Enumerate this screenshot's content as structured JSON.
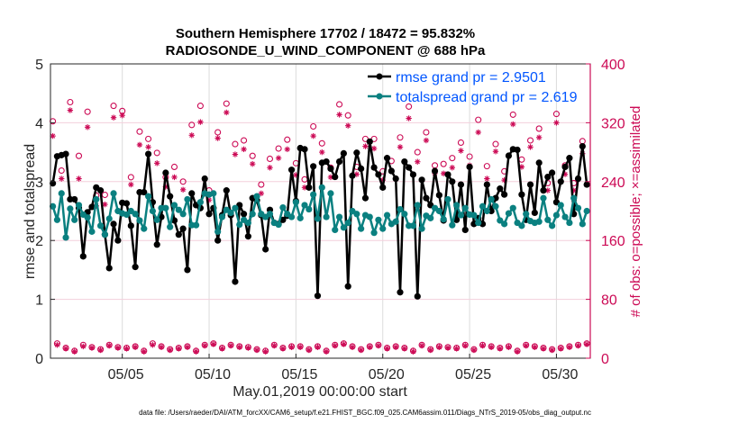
{
  "chart_data": {
    "type": "line",
    "title": [
      "Southern Hemisphere 17702 / 18472 = 95.832%",
      "RADIOSONDE_U_WIND_COMPONENT @ 688 hPa"
    ],
    "xlabel": "May.01,2019 00:00:00 start",
    "ylabel": "rmse and totalspread",
    "y2label": "# of obs: o=possible; ×=assimilated",
    "footer": "data file: /Users/raeder/DAI/ATM_forcXX/CAM6_setup/f.e21.FHIST_BGC.f09_025.CAM6assim.011/Diags_NTrS_2019-05/obs_diag_output.nc",
    "xlim": [
      0,
      31
    ],
    "ylim": [
      0,
      5
    ],
    "y2lim": [
      0,
      400
    ],
    "xticks": [
      4,
      9,
      14,
      19,
      24,
      29
    ],
    "xticklabels": [
      "05/05",
      "05/10",
      "05/15",
      "05/20",
      "05/25",
      "05/30"
    ],
    "yticks": [
      0,
      1,
      2,
      3,
      4,
      5
    ],
    "y2ticks": [
      0,
      80,
      160,
      240,
      320,
      400
    ],
    "grid": true,
    "legend_position": "top-right",
    "time_step_days": 0.25,
    "series": [
      {
        "name": "rmse grand pr = 2.9501",
        "color": "#000000",
        "values": [
          2.97,
          3.43,
          3.45,
          3.47,
          2.7,
          2.7,
          2.55,
          1.73,
          2.48,
          2.57,
          2.9,
          2.85,
          2.1,
          1.53,
          2.28,
          2.0,
          2.64,
          2.63,
          2.25,
          1.55,
          2.82,
          2.82,
          3.47,
          2.65,
          1.93,
          2.4,
          3.15,
          2.75,
          2.34,
          2.1,
          2.2,
          1.5,
          2.8,
          2.6,
          2.55,
          3.05,
          2.45,
          2.55,
          2.0,
          2.43,
          2.85,
          2.43,
          1.3,
          2.6,
          2.45,
          2.07,
          2.72,
          2.68,
          2.43,
          1.85,
          2.52,
          2.3,
          2.28,
          2.35,
          2.42,
          3.2,
          2.67,
          3.57,
          3.55,
          2.9,
          3.26,
          1.06,
          3.32,
          3.34,
          3.22,
          3.08,
          3.34,
          3.48,
          1.22,
          3.1,
          3.49,
          3.22,
          2.72,
          3.68,
          3.24,
          3.12,
          2.9,
          3.4,
          3.18,
          3.05,
          1.12,
          3.34,
          3.24,
          3.12,
          1.05,
          3.03,
          2.72,
          2.6,
          3.18,
          2.77,
          2.34,
          3.12,
          3.0,
          2.35,
          2.95,
          2.18,
          3.25,
          2.28,
          2.38,
          2.28,
          2.95,
          2.5,
          2.72,
          2.88,
          2.78,
          3.44,
          3.55,
          3.54,
          2.78,
          2.35,
          2.95,
          2.47,
          3.32,
          2.85,
          3.08,
          3.15,
          2.65,
          3.0,
          3.25,
          3.4,
          2.45,
          3.05,
          3.6,
          2.95
        ],
        "values_note": "approximate, 6-hourly from May 1 00Z"
      },
      {
        "name": "totalspread grand pr = 2.619",
        "color": "#0a8080",
        "values": [
          2.58,
          2.35,
          2.8,
          2.05,
          2.54,
          2.35,
          2.6,
          2.44,
          2.39,
          2.15,
          2.7,
          2.25,
          2.1,
          2.37,
          2.8,
          2.5,
          2.46,
          2.44,
          2.5,
          2.45,
          2.34,
          2.2,
          2.75,
          2.5,
          2.35,
          2.55,
          2.55,
          2.23,
          2.6,
          2.52,
          2.45,
          2.7,
          2.26,
          2.26,
          2.65,
          2.8,
          2.78,
          2.8,
          2.15,
          2.4,
          2.52,
          2.47,
          2.55,
          2.27,
          2.35,
          2.3,
          2.45,
          2.75,
          2.45,
          2.4,
          2.45,
          2.3,
          2.27,
          2.56,
          2.45,
          2.4,
          2.65,
          2.38,
          2.6,
          2.53,
          2.78,
          2.37,
          2.9,
          2.4,
          2.8,
          2.18,
          2.4,
          2.22,
          2.3,
          2.5,
          2.45,
          2.2,
          2.43,
          2.4,
          2.13,
          2.35,
          2.2,
          2.43,
          2.28,
          2.32,
          2.53,
          2.45,
          2.25,
          2.25,
          2.6,
          2.2,
          2.42,
          2.38,
          2.55,
          2.5,
          2.36,
          2.7,
          2.26,
          2.6,
          2.43,
          2.55,
          2.44,
          2.43,
          2.3,
          2.58,
          2.5,
          2.7,
          2.58,
          2.34,
          2.28,
          2.46,
          2.55,
          2.3,
          2.25,
          2.45,
          2.33,
          2.3,
          2.32,
          2.72,
          2.35,
          2.25,
          2.43,
          2.6,
          2.4,
          2.3,
          2.72,
          2.55,
          2.28,
          2.5
        ],
        "values_note": "approximate, 6-hourly from May 1 00Z"
      }
    ],
    "obs_possible": [
      322,
      20,
      255,
      14,
      348,
      10,
      275,
      18,
      335,
      15,
      221,
      12,
      222,
      18,
      343,
      15,
      336,
      14,
      246,
      16,
      308,
      10,
      298,
      20,
      279,
      16,
      246,
      12,
      260,
      14,
      240,
      16,
      317,
      10,
      343,
      18,
      228,
      20,
      307,
      14,
      346,
      18,
      291,
      16,
      296,
      15,
      275,
      12,
      236,
      10,
      271,
      18,
      285,
      14,
      297,
      16,
      265,
      16,
      243,
      12,
      315,
      16,
      292,
      10,
      259,
      18,
      345,
      20,
      330,
      16,
      260,
      12,
      298,
      16,
      298,
      18,
      254,
      14,
      268,
      16,
      300,
      14,
      342,
      10,
      280,
      18,
      307,
      12,
      262,
      16,
      264,
      15,
      272,
      14,
      293,
      18,
      274,
      12,
      324,
      18,
      261,
      16,
      291,
      14,
      254,
      16,
      331,
      10,
      270,
      18,
      296,
      16,
      312,
      14,
      238,
      12,
      332,
      14,
      262,
      16,
      238,
      18,
      295,
      20
    ],
    "obs_assimilated": [
      302,
      18,
      244,
      13,
      337,
      9,
      244,
      16,
      314,
      14,
      207,
      11,
      209,
      17,
      327,
      14,
      330,
      13,
      236,
      15,
      290,
      9,
      287,
      18,
      265,
      15,
      233,
      11,
      246,
      13,
      229,
      15,
      303,
      9,
      321,
      17,
      215,
      19,
      299,
      13,
      334,
      17,
      277,
      15,
      284,
      14,
      264,
      11,
      224,
      9,
      259,
      17,
      272,
      13,
      284,
      15,
      249,
      15,
      232,
      11,
      302,
      15,
      280,
      9,
      246,
      17,
      331,
      19,
      316,
      15,
      250,
      11,
      288,
      15,
      285,
      17,
      242,
      13,
      255,
      15,
      287,
      13,
      326,
      9,
      267,
      17,
      296,
      11,
      251,
      15,
      251,
      14,
      259,
      13,
      282,
      17,
      262,
      11,
      307,
      17,
      244,
      15,
      281,
      13,
      242,
      15,
      318,
      9,
      260,
      17,
      287,
      15,
      300,
      13,
      228,
      11,
      320,
      13,
      250,
      15,
      228,
      17,
      278,
      19
    ]
  },
  "colors": {
    "rmse": "#000000",
    "spread": "#0a8080",
    "obs": "#cc0a55",
    "legend_text": "#0055ff"
  }
}
